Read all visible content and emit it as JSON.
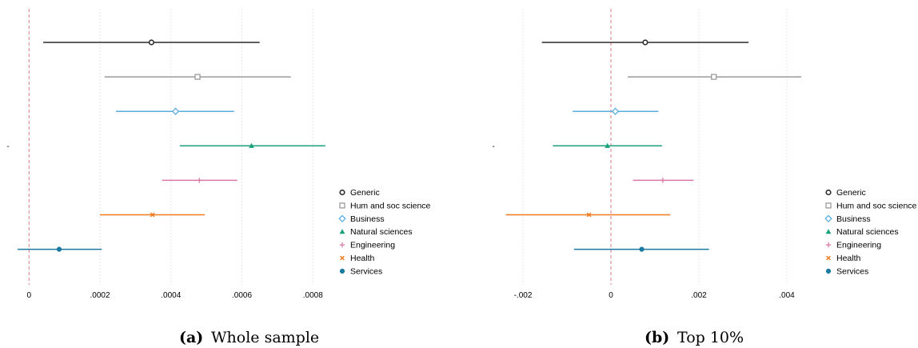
{
  "chart_data": [
    {
      "type": "scatter",
      "subtype": "coefficient-plot",
      "caption_letter": "(a)",
      "caption_text": "Whole sample",
      "title": "",
      "xlabel": "",
      "ylabel": "",
      "xlim": [
        -3e-05,
        0.00084
      ],
      "xticks": [
        0,
        0.0002,
        0.0004,
        0.0006,
        0.0008
      ],
      "xtick_labels": [
        "0",
        ".0002",
        ".0004",
        ".0006",
        ".0008"
      ],
      "ytick_labels": [
        "-"
      ],
      "vertical_reference_line": 0,
      "grid": "vertical dotted",
      "legend_position": "right",
      "series": [
        {
          "name": "Generic",
          "estimate": 0.000345,
          "ci": [
            4e-05,
            0.00065
          ]
        },
        {
          "name": "Hum and soc science",
          "estimate": 0.000475,
          "ci": [
            0.000213,
            0.000738
          ]
        },
        {
          "name": "Business",
          "estimate": 0.000413,
          "ci": [
            0.000245,
            0.000578
          ]
        },
        {
          "name": "Natural sciences",
          "estimate": 0.000627,
          "ci": [
            0.000425,
            0.000835
          ]
        },
        {
          "name": "Engineering",
          "estimate": 0.00048,
          "ci": [
            0.000375,
            0.000587
          ]
        },
        {
          "name": "Health",
          "estimate": 0.000348,
          "ci": [
            0.0002,
            0.000495
          ]
        },
        {
          "name": "Services",
          "estimate": 8.5e-05,
          "ci": [
            -3.2e-05,
            0.000205
          ]
        }
      ]
    },
    {
      "type": "scatter",
      "subtype": "coefficient-plot",
      "caption_letter": "(b)",
      "caption_text": "Top 10%",
      "title": "",
      "xlabel": "",
      "ylabel": "",
      "xlim": [
        -0.0026,
        0.0046
      ],
      "xticks": [
        -0.002,
        0,
        0.002,
        0.004
      ],
      "xtick_labels": [
        "-.002",
        "0",
        ".002",
        ".004"
      ],
      "ytick_labels": [
        "-"
      ],
      "vertical_reference_line": 0,
      "grid": "vertical dotted",
      "legend_position": "right",
      "series": [
        {
          "name": "Generic",
          "estimate": 0.00078,
          "ci": [
            -0.00157,
            0.00313
          ]
        },
        {
          "name": "Hum and soc science",
          "estimate": 0.00234,
          "ci": [
            0.00038,
            0.00433
          ]
        },
        {
          "name": "Business",
          "estimate": 0.0001,
          "ci": [
            -0.00087,
            0.00108
          ]
        },
        {
          "name": "Natural sciences",
          "estimate": -8e-05,
          "ci": [
            -0.00132,
            0.00116
          ]
        },
        {
          "name": "Engineering",
          "estimate": 0.00118,
          "ci": [
            0.0005,
            0.00188
          ]
        },
        {
          "name": "Health",
          "estimate": -0.0005,
          "ci": [
            -0.00239,
            0.00135
          ]
        },
        {
          "name": "Services",
          "estimate": 0.0007,
          "ci": [
            -0.00084,
            0.00223
          ]
        }
      ]
    }
  ],
  "colors": {
    "Generic": "#2b2b2b",
    "Hum and soc science": "#9a9a9a",
    "Business": "#5aaee0",
    "Natural sciences": "#1aa17b",
    "Engineering": "#d978a8",
    "Health": "#ef7a1f",
    "Services": "#1a7a9f",
    "reference_line": "#e07a8a",
    "grid": "#d8d8d8"
  },
  "markers": {
    "Generic": "circle-hollow",
    "Hum and soc science": "square-hollow",
    "Business": "diamond-hollow",
    "Natural sciences": "triangle-filled",
    "Engineering": "plus",
    "Health": "x",
    "Services": "circle-filled"
  }
}
